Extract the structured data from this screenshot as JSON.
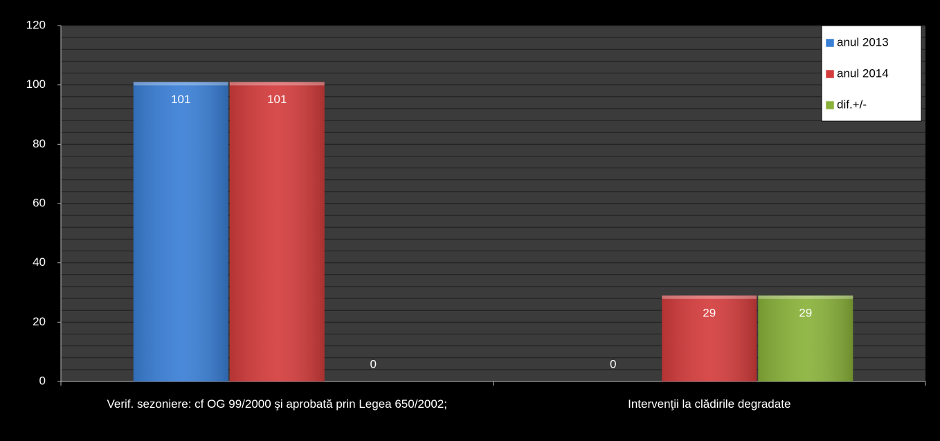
{
  "chart_data": {
    "type": "bar",
    "categories": [
      "Verif. sezoniere: cf OG 99/2000 şi aprobată prin Legea 650/2002;",
      "Intervenţii la clădirile degradate"
    ],
    "series": [
      {
        "name": "anul 2013",
        "color": "#3a7fd6",
        "values": [
          101,
          0
        ]
      },
      {
        "name": "anul 2014",
        "color": "#d43c3c",
        "values": [
          101,
          29
        ]
      },
      {
        "name": "dif.+/-",
        "color": "#8ab23a",
        "values": [
          0,
          29
        ]
      }
    ],
    "ylim": [
      0,
      120
    ],
    "yticks": [
      0,
      20,
      40,
      60,
      80,
      100,
      120
    ],
    "grid": true,
    "legend": "top-right"
  }
}
